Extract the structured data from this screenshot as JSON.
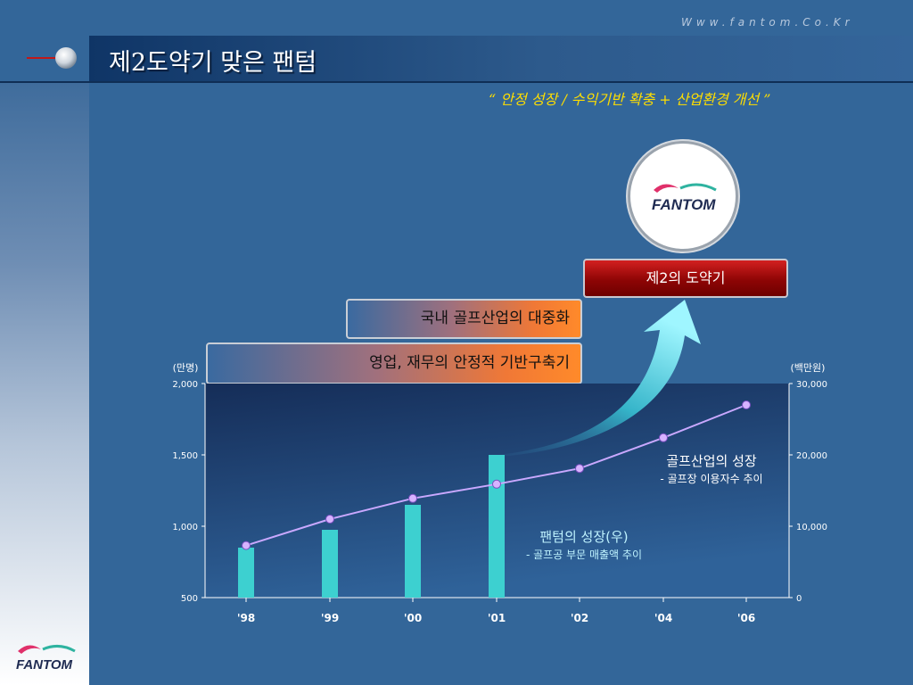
{
  "header": {
    "title": "제2도약기 맞은 팬텀",
    "website": "Www.fantom.Co.Kr",
    "slogan": "“ 안정 성장 / 수익기반 확충 + 산업환경 개선 ”"
  },
  "logo": {
    "text": "FANTOM",
    "icon": "fantom-logo"
  },
  "badge": {
    "label": "제2의 도약기"
  },
  "pills": [
    {
      "label": "국내 골프산업의 대중화"
    },
    {
      "label": "영업, 재무의 안정적 기반구축기"
    }
  ],
  "colors": {
    "bar": "#3dd0d0",
    "line": "#c9a8ff",
    "point": "#d7b3ff",
    "badge": "#a00a0a",
    "slogan": "#ffde00"
  },
  "chart_data": {
    "type": "bar",
    "categories": [
      "'98",
      "'99",
      "'00",
      "'01",
      "'02",
      "'04",
      "'06"
    ],
    "y_left": {
      "unit_label": "(만명)",
      "range": [
        500,
        2000
      ],
      "ticks": [
        "500",
        "1,000",
        "1,500",
        "2,000"
      ]
    },
    "y_right": {
      "unit_label": "(백만원)",
      "range": [
        0,
        30000
      ],
      "ticks": [
        "0",
        "10,000",
        "20,000",
        "30,000"
      ]
    },
    "series": [
      {
        "name": "팬텀의 성장(우)",
        "subtitle": "- 골프공 부문 매출액 추이",
        "type": "bar",
        "axis": "right",
        "values": [
          7000,
          9500,
          13000,
          20000,
          null,
          null,
          null
        ]
      },
      {
        "name": "골프산업의 성장",
        "subtitle": "- 골프장 이용자수 추이",
        "type": "line",
        "axis": "left",
        "values": [
          865,
          1050,
          1195,
          1295,
          1405,
          1620,
          1850
        ]
      }
    ],
    "grid": false
  }
}
